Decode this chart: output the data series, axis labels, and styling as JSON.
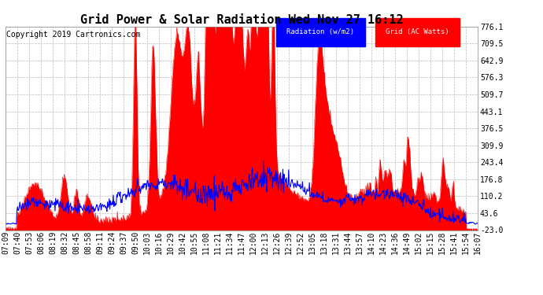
{
  "title": "Grid Power & Solar Radiation Wed Nov 27 16:12",
  "copyright": "Copyright 2019 Cartronics.com",
  "legend_radiation": "Radiation (w/m2)",
  "legend_grid": "Grid (AC Watts)",
  "ymin": -23.0,
  "ymax": 776.1,
  "yticks": [
    -23.0,
    43.6,
    110.2,
    176.8,
    243.4,
    309.9,
    376.5,
    443.1,
    509.7,
    576.3,
    642.9,
    709.5,
    776.1
  ],
  "background_color": "#ffffff",
  "plot_bg_color": "#ffffff",
  "grid_color": "#bbbbbb",
  "red_color": "#ff0000",
  "blue_color": "#0000ff",
  "title_fontsize": 11,
  "copyright_fontsize": 7,
  "tick_fontsize": 7,
  "xtick_labels": [
    "07:09",
    "07:40",
    "07:53",
    "08:06",
    "08:19",
    "08:32",
    "08:45",
    "08:58",
    "09:11",
    "09:24",
    "09:37",
    "09:50",
    "10:03",
    "10:16",
    "10:29",
    "10:42",
    "10:55",
    "11:08",
    "11:21",
    "11:34",
    "11:47",
    "12:00",
    "12:13",
    "12:26",
    "12:39",
    "12:52",
    "13:05",
    "13:18",
    "13:31",
    "13:44",
    "13:57",
    "14:10",
    "14:23",
    "14:36",
    "14:49",
    "15:02",
    "15:15",
    "15:28",
    "15:41",
    "15:54",
    "16:07"
  ]
}
